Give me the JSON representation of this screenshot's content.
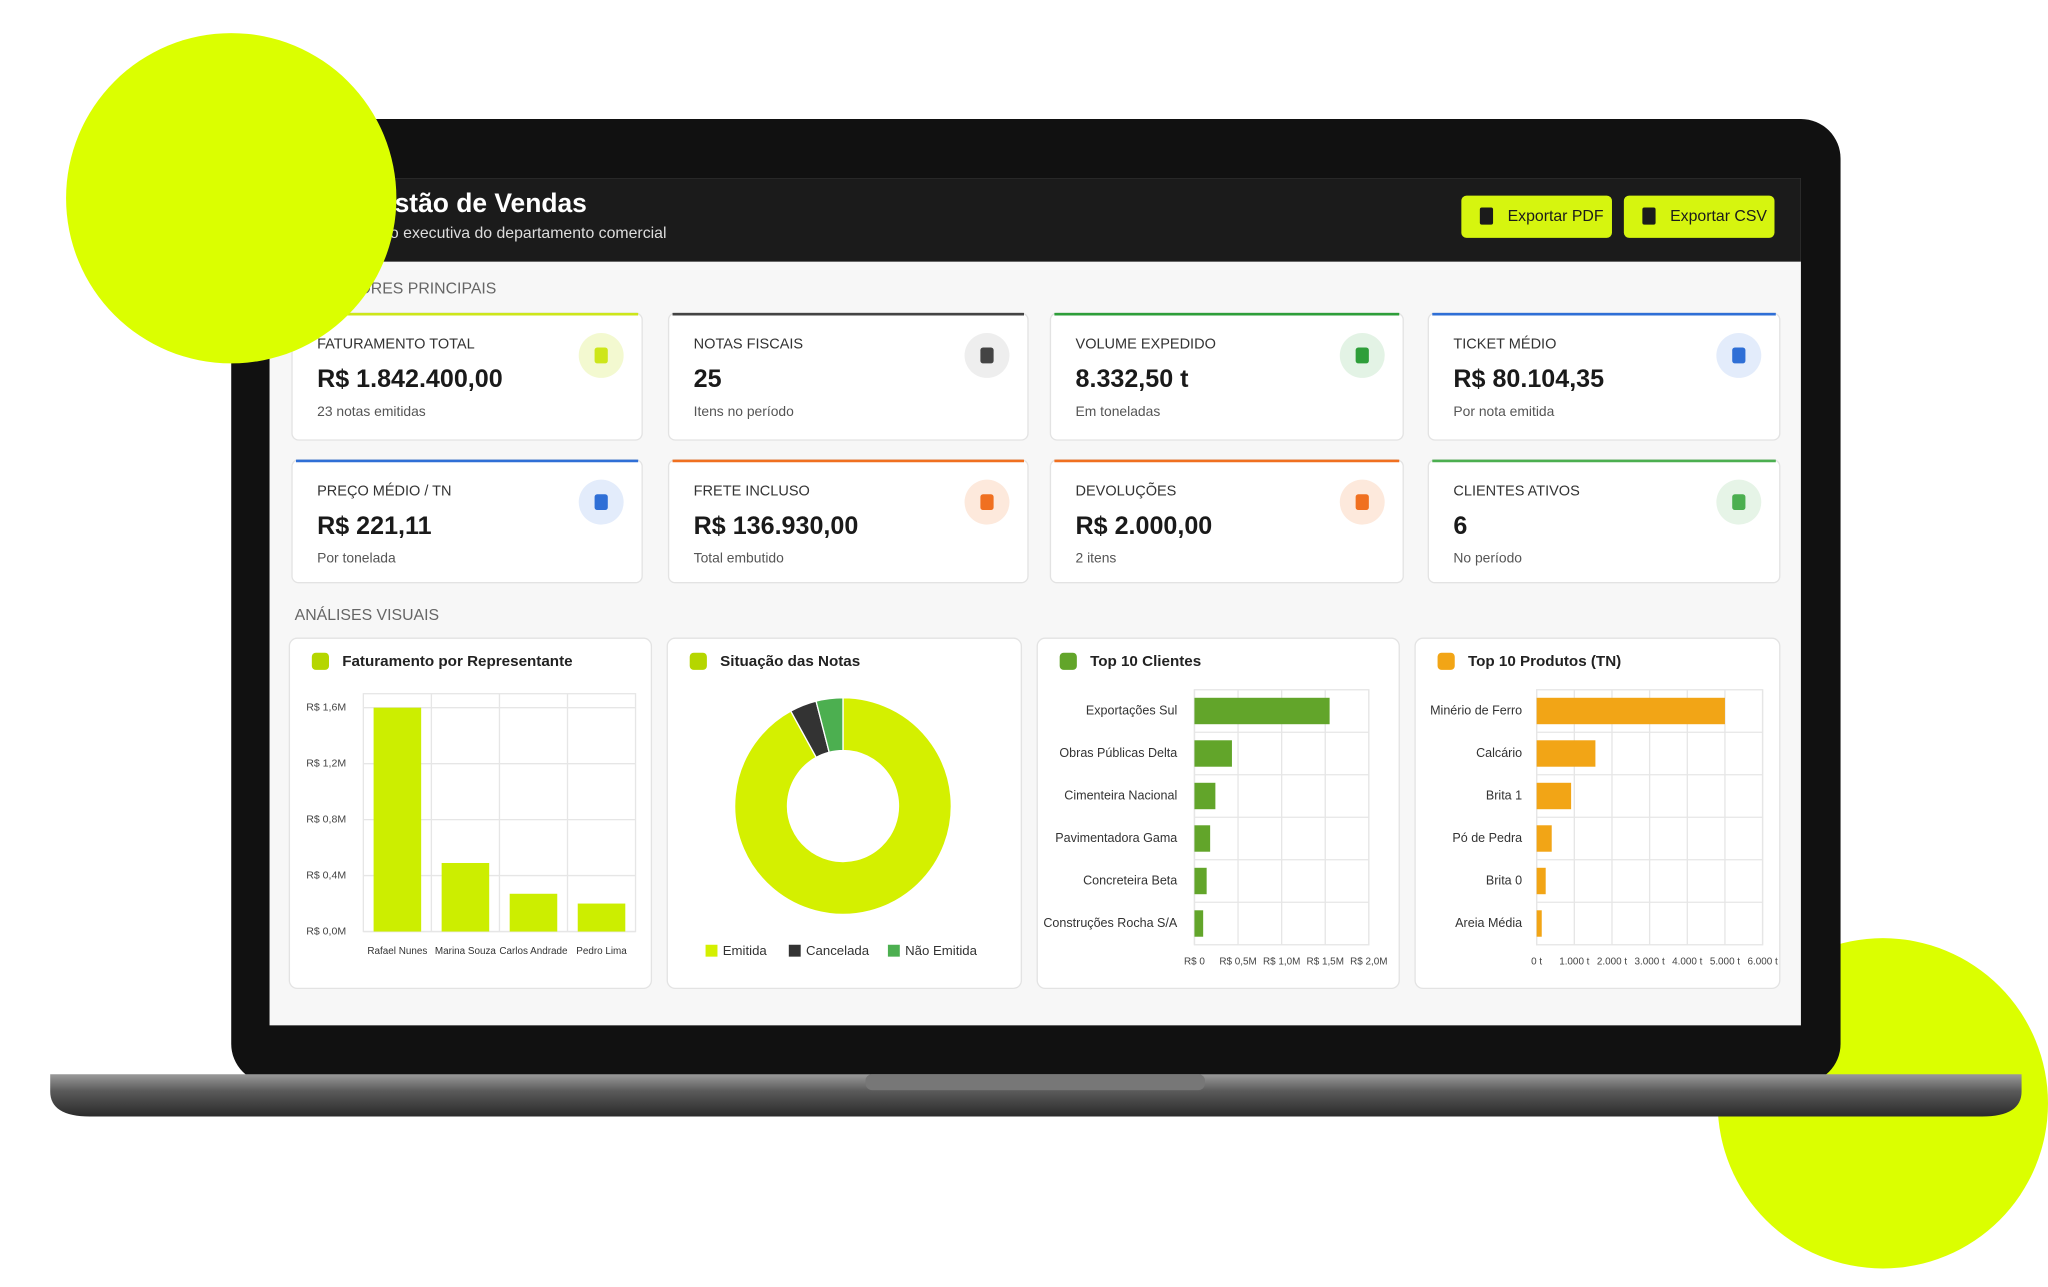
{
  "header": {
    "title": "Gestão de Vendas",
    "subtitle": "Visão executiva do departamento comercial"
  },
  "buttons": [
    "Exportar PDF",
    "Exportar CSV"
  ],
  "sections": {
    "indicators": "INDICADORES PRINCIPAIS",
    "analyses": "ANÁLISES VISUAIS"
  },
  "kpis": [
    {
      "label": "FATURAMENTO TOTAL",
      "value": "R$ 1.842.400,00",
      "sub": "23 notas emitidas"
    },
    {
      "label": "NOTAS FISCAIS",
      "value": "25",
      "sub": "Itens no período"
    },
    {
      "label": "VOLUME EXPEDIDO",
      "value": "8.332,50 t",
      "sub": "Em toneladas"
    },
    {
      "label": "TICKET MÉDIO",
      "value": "R$ 80.104,35",
      "sub": "Por nota emitida"
    },
    {
      "label": "PREÇO MÉDIO / TN",
      "value": "R$ 221,11",
      "sub": "Por tonelada"
    },
    {
      "label": "FRETE INCLUSO",
      "value": "R$ 136.930,00",
      "sub": "Total embutido"
    },
    {
      "label": "DEVOLUÇÕES",
      "value": "R$ 2.000,00",
      "sub": "2 itens"
    },
    {
      "label": "CLIENTES ATIVOS",
      "value": "6",
      "sub": "No período"
    }
  ],
  "chart_data": [
    {
      "type": "bar",
      "title": "Faturamento por Representante",
      "categories": [
        "Rafael Nunes",
        "Marina Souza",
        "Carlos Andrade",
        "Pedro Lima"
      ],
      "values": [
        1600000,
        490000,
        270000,
        200000
      ],
      "color": "#ccee00",
      "ylim": [
        0,
        1700000
      ],
      "yticks": [
        {
          "value": 0,
          "label": "R$ 0,0M"
        },
        {
          "value": 400000,
          "label": "R$ 0,4M"
        },
        {
          "value": 800000,
          "label": "R$ 0,8M"
        },
        {
          "value": 1200000,
          "label": "R$ 1,2M"
        },
        {
          "value": 1600000,
          "label": "R$ 1,6M"
        }
      ],
      "grid": true
    },
    {
      "type": "donut",
      "title": "Situação das Notas",
      "categories": [
        "Emitida",
        "Cancelada",
        "Não Emitida"
      ],
      "values": [
        23,
        1,
        1
      ],
      "colors": [
        "#d4f000",
        "#333333",
        "#4caf50"
      ]
    },
    {
      "type": "barh",
      "title": "Top 10 Clientes",
      "categories": [
        "Exportações Sul",
        "Obras Públicas Delta",
        "Cimenteira Nacional",
        "Pavimentadora Gama",
        "Concreteira Beta",
        "Construções Rocha S/A"
      ],
      "values": [
        1550000,
        430000,
        240000,
        180000,
        140000,
        100000
      ],
      "color": "#62a52a",
      "xlim": [
        0,
        2000000
      ],
      "xticks": [
        {
          "value": 0,
          "label": "R$ 0"
        },
        {
          "value": 500000,
          "label": "R$ 0,5M"
        },
        {
          "value": 1000000,
          "label": "R$ 1,0M"
        },
        {
          "value": 1500000,
          "label": "R$ 1,5M"
        },
        {
          "value": 2000000,
          "label": "R$ 2,0M"
        }
      ],
      "grid": true
    },
    {
      "type": "barh",
      "title": "Top 10 Produtos (TN)",
      "categories": [
        "Minério de Ferro",
        "Calcário",
        "Brita 1",
        "Pó de Pedra",
        "Brita 0",
        "Areia Média"
      ],
      "values": [
        5000,
        1560,
        915,
        400,
        240,
        135
      ],
      "color": "#f2a516",
      "xlim": [
        0,
        6000
      ],
      "xticks": [
        {
          "value": 0,
          "label": "0 t"
        },
        {
          "value": 1000,
          "label": "1.000 t"
        },
        {
          "value": 2000,
          "label": "2.000 t"
        },
        {
          "value": 3000,
          "label": "3.000 t"
        },
        {
          "value": 4000,
          "label": "4.000 t"
        },
        {
          "value": 5000,
          "label": "5.000 t"
        },
        {
          "value": 6000,
          "label": "6.000 t"
        }
      ],
      "grid": true
    }
  ]
}
